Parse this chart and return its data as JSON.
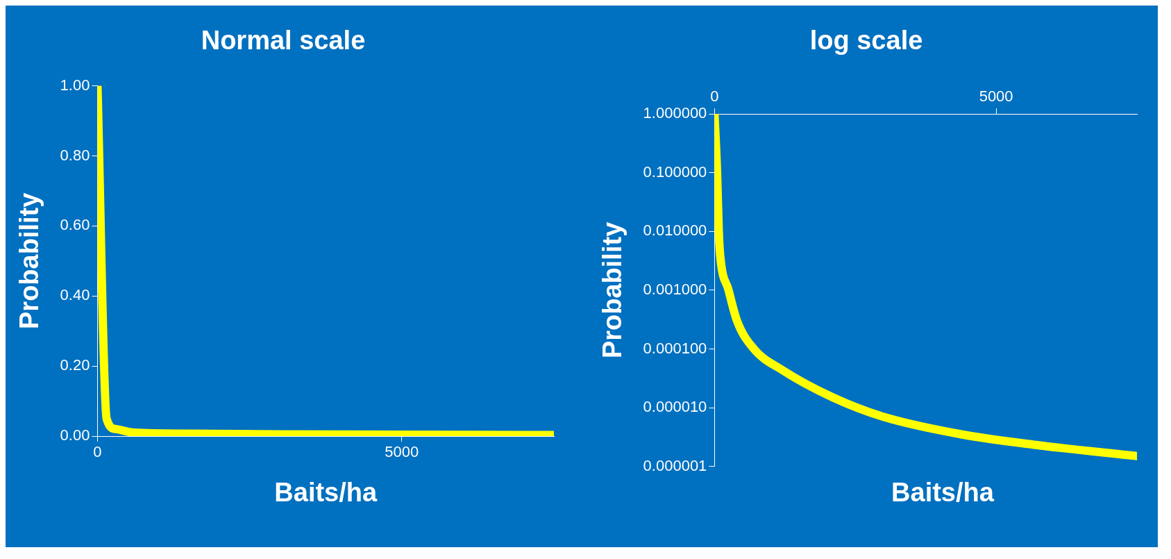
{
  "chart_data": [
    {
      "type": "line",
      "title": "Normal scale",
      "xlabel": "Baits/ha",
      "ylabel": "Probability",
      "x": [
        0,
        150,
        300,
        600,
        1500,
        3000,
        5000,
        7500
      ],
      "series": [
        {
          "color": "#ffff00",
          "values": [
            1,
            0.05,
            0.02,
            0.01,
            0.007,
            0.005,
            0.004,
            0.003
          ]
        }
      ],
      "xlim": [
        0,
        7500
      ],
      "xticks": [
        0,
        5000
      ],
      "ylim": [
        0,
        1
      ],
      "yticks": [
        {
          "value": 0,
          "label": "0.00"
        },
        {
          "value": 0.2,
          "label": "0.20"
        },
        {
          "value": 0.4,
          "label": "0.40"
        },
        {
          "value": 0.6,
          "label": "0.60"
        },
        {
          "value": 0.8,
          "label": "0.80"
        },
        {
          "value": 1,
          "label": "1.00"
        }
      ],
      "grid": false,
      "legend": false,
      "marker": "none",
      "line_style": "solid"
    },
    {
      "type": "line",
      "title": "log scale",
      "xlabel": "Baits/ha",
      "ylabel": "Probability",
      "x": [
        0,
        46,
        76,
        100,
        250,
        400,
        700,
        1200,
        2100,
        3000,
        4400,
        5750,
        7500
      ],
      "series": [
        {
          "axis": "x2",
          "color": "#ffff00",
          "values": [
            1,
            0.1,
            0.01,
            0.004,
            0.001,
            0.0003,
            0.0001,
            4.4e-05,
            1.5e-05,
            7e-06,
            3.5e-06,
            2.3e-06,
            1.5e-06
          ]
        }
      ],
      "x2lim": [
        0,
        7500
      ],
      "x2ticks": [
        0,
        5000
      ],
      "ylim": [
        1e-06,
        1
      ],
      "yticks": [
        {
          "value": 1,
          "label": "1.000000"
        },
        {
          "value": 0.1,
          "label": "0.100000"
        },
        {
          "value": 0.01,
          "label": "0.010000"
        },
        {
          "value": 0.001,
          "label": "0.001000"
        },
        {
          "value": 0.0001,
          "label": "0.000100"
        },
        {
          "value": 1e-05,
          "label": "0.000010"
        },
        {
          "value": 1e-06,
          "label": "0.000001"
        }
      ],
      "log": "y",
      "grid": false,
      "legend": false,
      "marker": "none",
      "line_style": "solid"
    }
  ]
}
